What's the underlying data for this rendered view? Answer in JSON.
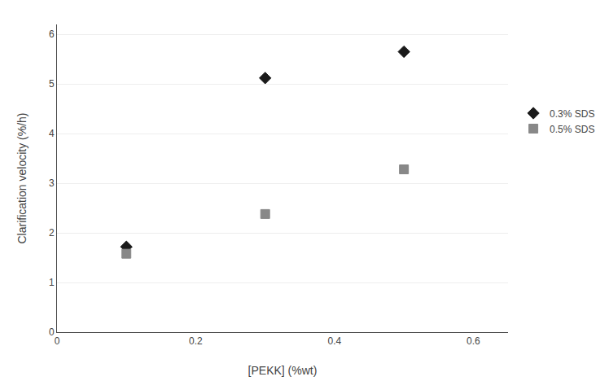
{
  "chart_data": {
    "type": "scatter",
    "xlabel": "[PEKK] (%wt)",
    "ylabel": "Clarification velocity (%/h)",
    "series": [
      {
        "name": "0.3% SDS",
        "x": [
          0.1,
          0.3,
          0.5
        ],
        "values": [
          1.72,
          5.12,
          5.65
        ],
        "marker": "diamond",
        "color": "#1a1a1a"
      },
      {
        "name": "0.5% SDS",
        "x": [
          0.1,
          0.3,
          0.5
        ],
        "values": [
          1.58,
          2.38,
          3.28
        ],
        "marker": "square",
        "color": "#888888"
      }
    ],
    "xlim": [
      0,
      0.65
    ],
    "xticks": [
      0,
      0.2,
      0.4,
      0.6
    ],
    "ylim": [
      0,
      6.2
    ],
    "yticks": [
      0,
      1,
      2,
      3,
      4,
      5,
      6
    ],
    "grid": "y",
    "legend": "right"
  }
}
